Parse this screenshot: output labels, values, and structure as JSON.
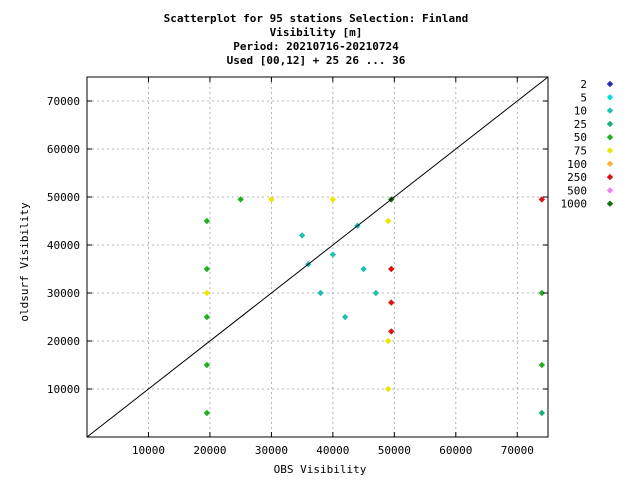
{
  "chart_data": {
    "type": "scatter",
    "title_lines": [
      "Scatterplot for   95 stations Selection: Finland",
      "Visibility [m]",
      "Period: 20210716-20210724",
      "Used [00,12] + 25 26 ... 36"
    ],
    "xlabel": "OBS Visibility",
    "ylabel": "oldsurf Visibility",
    "xlim": [
      0,
      75000
    ],
    "ylim": [
      0,
      75000
    ],
    "xticks": [
      10000,
      20000,
      30000,
      40000,
      50000,
      60000,
      70000
    ],
    "yticks": [
      10000,
      20000,
      30000,
      40000,
      50000,
      60000,
      70000
    ],
    "xtick_labels": [
      "10000",
      "20000",
      "30000",
      "40000",
      "50000",
      "60000",
      "70000"
    ],
    "ytick_labels": [
      "10000",
      "20000",
      "30000",
      "40000",
      "50000",
      "60000",
      "70000"
    ],
    "grid": true,
    "diagonal": true,
    "legend_position": "right",
    "legend": [
      {
        "label": "2",
        "color": "#2b2bb8"
      },
      {
        "label": "5",
        "color": "#00e0e0"
      },
      {
        "label": "10",
        "color": "#20c0b0"
      },
      {
        "label": "25",
        "color": "#18b07a"
      },
      {
        "label": "50",
        "color": "#22b022"
      },
      {
        "label": "75",
        "color": "#e8e800"
      },
      {
        "label": "100",
        "color": "#ffb030"
      },
      {
        "label": "250",
        "color": "#e01010"
      },
      {
        "label": "500",
        "color": "#f080f0"
      },
      {
        "label": "1000",
        "color": "#107010"
      }
    ],
    "bins": [
      {
        "x": 44000,
        "y": 44000,
        "count": 10
      },
      {
        "x": 40000,
        "y": 38000,
        "count": 10
      },
      {
        "x": 45000,
        "y": 35000,
        "count": 10
      },
      {
        "x": 38000,
        "y": 30000,
        "count": 10
      },
      {
        "x": 42000,
        "y": 25000,
        "count": 10
      },
      {
        "x": 35000,
        "y": 42000,
        "count": 10
      },
      {
        "x": 47000,
        "y": 30000,
        "count": 10
      },
      {
        "x": 36000,
        "y": 36000,
        "count": 10
      },
      {
        "x": 19500,
        "y": 45000,
        "count": 50
      },
      {
        "x": 19500,
        "y": 35000,
        "count": 50
      },
      {
        "x": 19500,
        "y": 25000,
        "count": 50
      },
      {
        "x": 19500,
        "y": 15000,
        "count": 50
      },
      {
        "x": 19500,
        "y": 5000,
        "count": 50
      },
      {
        "x": 19500,
        "y": 30000,
        "count": 75
      },
      {
        "x": 49000,
        "y": 20000,
        "count": 75
      },
      {
        "x": 49000,
        "y": 10000,
        "count": 75
      },
      {
        "x": 49000,
        "y": 45000,
        "count": 75
      },
      {
        "x": 49500,
        "y": 35000,
        "count": 250
      },
      {
        "x": 49500,
        "y": 28000,
        "count": 250
      },
      {
        "x": 49500,
        "y": 22000,
        "count": 250
      },
      {
        "x": 30000,
        "y": 49500,
        "count": 75
      },
      {
        "x": 40000,
        "y": 49500,
        "count": 75
      },
      {
        "x": 25000,
        "y": 49500,
        "count": 50
      },
      {
        "x": 49500,
        "y": 49500,
        "count": 1000
      },
      {
        "x": 74000,
        "y": 49500,
        "count": 250
      },
      {
        "x": 74000,
        "y": 30000,
        "count": 50
      },
      {
        "x": 74000,
        "y": 15000,
        "count": 50
      },
      {
        "x": 74000,
        "y": 5000,
        "count": 25
      }
    ]
  }
}
